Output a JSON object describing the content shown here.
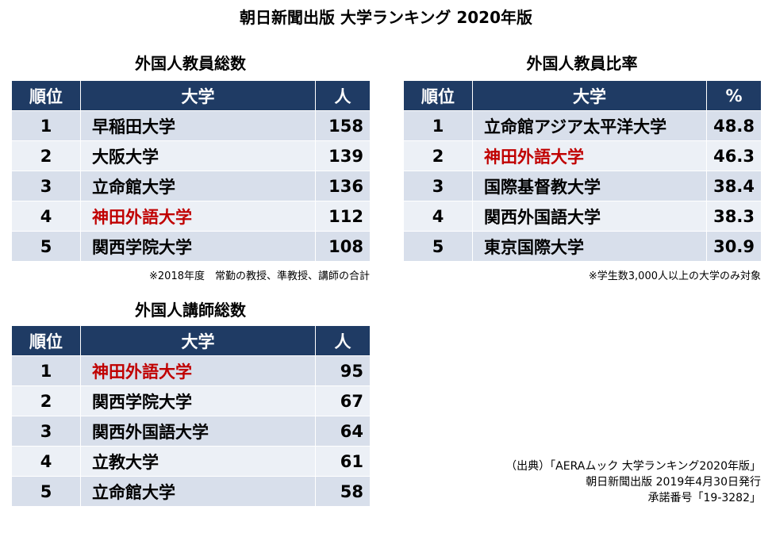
{
  "title": "朝日新聞出版 大学ランキング 2020年版",
  "tables": [
    {
      "title": "外国人教員総数",
      "headers": [
        "順位",
        "大学",
        "人"
      ],
      "rows": [
        {
          "rank": "1",
          "name": "早稲田大学",
          "value": "158",
          "highlight": false
        },
        {
          "rank": "2",
          "name": "大阪大学",
          "value": "139",
          "highlight": false
        },
        {
          "rank": "3",
          "name": "立命館大学",
          "value": "136",
          "highlight": false
        },
        {
          "rank": "4",
          "name": "神田外語大学",
          "value": "112",
          "highlight": true
        },
        {
          "rank": "5",
          "name": "関西学院大学",
          "value": "108",
          "highlight": false
        }
      ],
      "note": "※2018年度　常勤の教授、準教授、講師の合計"
    },
    {
      "title": "外国人教員比率",
      "headers": [
        "順位",
        "大学",
        "%"
      ],
      "rows": [
        {
          "rank": "1",
          "name": "立命館アジア太平洋大学",
          "value": "48.8",
          "highlight": false
        },
        {
          "rank": "2",
          "name": "神田外語大学",
          "value": "46.3",
          "highlight": true
        },
        {
          "rank": "3",
          "name": "国際基督教大学",
          "value": "38.4",
          "highlight": false
        },
        {
          "rank": "4",
          "name": "関西外国語大学",
          "value": "38.3",
          "highlight": false
        },
        {
          "rank": "5",
          "name": "東京国際大学",
          "value": "30.9",
          "highlight": false
        }
      ],
      "note": "※学生数3,000人以上の大学のみ対象"
    },
    {
      "title": "外国人講師総数",
      "headers": [
        "順位",
        "大学",
        "人"
      ],
      "rows": [
        {
          "rank": "1",
          "name": "神田外語大学",
          "value": "95",
          "highlight": true
        },
        {
          "rank": "2",
          "name": "関西学院大学",
          "value": "67",
          "highlight": false
        },
        {
          "rank": "3",
          "name": "関西外国語大学",
          "value": "64",
          "highlight": false
        },
        {
          "rank": "4",
          "name": "立教大学",
          "value": "61",
          "highlight": false
        },
        {
          "rank": "5",
          "name": "立命館大学",
          "value": "58",
          "highlight": false
        }
      ]
    }
  ],
  "source": {
    "line1": "（出典）「AERAムック 大学ランキング2020年版」",
    "line2": "朝日新聞出版 2019年4月30日発行",
    "line3": "承諾番号「19-3282」"
  },
  "colors": {
    "header": "#1f3b64",
    "highlight": "#c00000"
  }
}
